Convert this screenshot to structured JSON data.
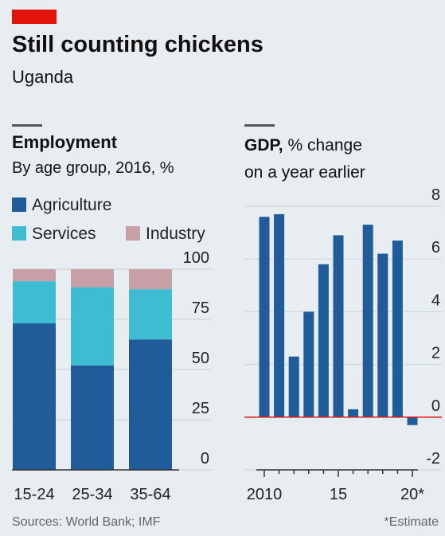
{
  "title": "Still counting chickens",
  "subtitle": "Uganda",
  "source": "Sources: World Bank; IMF",
  "note": "*Estimate",
  "chart_data": [
    {
      "type": "stacked-bar",
      "title": "Employment",
      "subtitle": "By age group, 2016, %",
      "categories": [
        "15-24",
        "25-34",
        "35-64"
      ],
      "series": [
        {
          "name": "Agriculture",
          "color": "#1f5c99",
          "values": [
            73,
            52,
            65
          ]
        },
        {
          "name": "Services",
          "color": "#3ebcd2",
          "values": [
            21,
            39,
            25
          ]
        },
        {
          "name": "Industry",
          "color": "#c6a0a6",
          "values": [
            6,
            9,
            10
          ]
        }
      ],
      "ylim": [
        0,
        100
      ],
      "yticks": [
        0,
        25,
        50,
        75,
        100
      ],
      "grid": true
    },
    {
      "type": "bar",
      "title": "GDP,",
      "subtitle": "% change on a year earlier",
      "categories": [
        "2010",
        null,
        null,
        null,
        null,
        "15",
        null,
        null,
        null,
        null,
        "20*"
      ],
      "values": [
        7.6,
        7.7,
        2.3,
        4.0,
        5.8,
        6.9,
        0.3,
        7.3,
        6.2,
        6.7,
        -0.3
      ],
      "color": "#1f5c99",
      "zero_line_color": "#e3120b",
      "ylim": [
        -2,
        8
      ],
      "yticks": [
        -2,
        0,
        2,
        4,
        6,
        8
      ],
      "grid": true
    }
  ]
}
